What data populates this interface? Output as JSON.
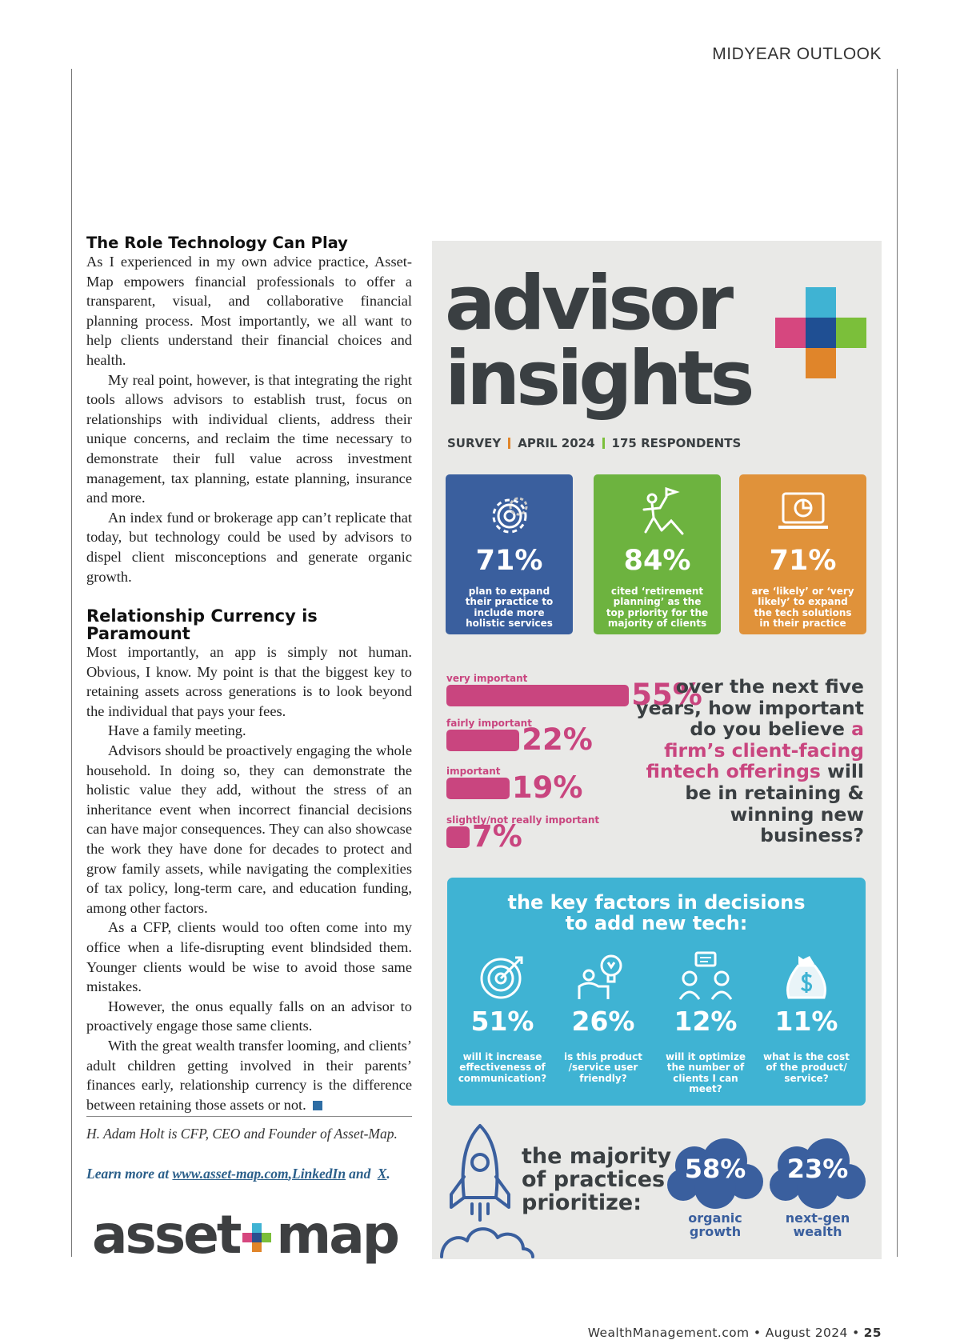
{
  "header": {
    "section": "MIDYEAR OUTLOOK"
  },
  "article": {
    "sections": [
      {
        "heading": "The Role Technology Can Play",
        "paragraphs": [
          "As I experienced in my own advice practice, Asset-Map empowers financial professionals to offer a transparent, visual, and collaborative financial planning process. Most importantly, we all want to help clients understand their financial choices and health.",
          "My real point, however, is that integrating the right tools allows advisors to establish trust, focus on relationships with individual clients, address their unique concerns, and reclaim the time necessary to demonstrate their full value across investment management, tax planning, estate planning, insurance and more.",
          "An index fund or brokerage app can’t replicate that today, but technology could be used by advisors to dispel client misconceptions and generate organic growth."
        ]
      },
      {
        "heading": "Relationship Currency is Paramount",
        "paragraphs": [
          "Most importantly, an app is simply not human. Obvious, I know. My point is that the biggest key to retaining assets across generations is to look beyond the individual that pays your fees.",
          "Have a family meeting.",
          "Advisors should be proactively engaging the whole household. In doing so, they can demonstrate the holistic value they add, without the stress of an inheritance event when incorrect financial decisions can have major consequences. They can also showcase the work they have done for decades to protect and grow family assets, while navigating the complexities of tax policy, long-term care, and education funding, among other factors.",
          "As a CFP, clients would too often come into my office when a life-disrupting event blindsided them. Younger clients would be wise to avoid those same mistakes.",
          "However, the onus equally falls on an advisor to proactively engage those same clients.",
          "With the great wealth transfer looming, and clients’ adult children getting involved in their parents’ finances early, relationship currency is the difference between retaining those assets or not."
        ]
      }
    ],
    "bio": "H. Adam Holt is CFP, CEO and Founder of Asset-Map.",
    "learn_more": {
      "prefix": "Learn more at",
      "links": [
        "www.asset-map.com",
        "LinkedIn",
        "X"
      ],
      "joiners": [
        ",",
        "and",
        "."
      ]
    }
  },
  "logo": {
    "left": "asset",
    "right": "map"
  },
  "infographic": {
    "title": [
      "advisor",
      "insights"
    ],
    "survey": [
      "SURVEY",
      "APRIL 2024",
      "175 RESPONDENTS"
    ],
    "cards": [
      {
        "value_label": "71%",
        "text": "plan to expand their practice to include more holistic services",
        "color": "#3a5f9e"
      },
      {
        "value_label": "84%",
        "text": "cited ‘retirement planning’ as the top priority for the majority of clients",
        "color": "#6db33f"
      },
      {
        "value_label": "71%",
        "text": "are ‘likely’ or ‘very likely’ to expand the tech solutions in their practice",
        "color": "#e0923a"
      }
    ],
    "importance": {
      "color": "#c9457f",
      "items": [
        {
          "name": "very important",
          "value": 55,
          "value_label": "55%"
        },
        {
          "name": "fairly important",
          "value": 22,
          "value_label": "22%"
        },
        {
          "name": "important",
          "value": 19,
          "value_label": "19%"
        },
        {
          "name": "slightly/not really important",
          "value": 7,
          "value_label": "7%"
        }
      ],
      "question": [
        {
          "text": "over the next five years, how important do you believe",
          "highlight": false
        },
        {
          "text": "a firm’s client-facing fintech offerings",
          "highlight": true
        },
        {
          "text": "will be in retaining & winning new business?",
          "highlight": false
        }
      ]
    },
    "factors": {
      "title": "the key factors in decisions to add new tech:",
      "items": [
        {
          "value_label": "51%",
          "text": "will it increase effectiveness of communication?"
        },
        {
          "value_label": "26%",
          "text": "is this product /service user friendly?"
        },
        {
          "value_label": "12%",
          "text": "will it optimize the number of clients I can meet?"
        },
        {
          "value_label": "11%",
          "text": "what is the cost of the product/ service?"
        }
      ]
    },
    "majority": {
      "title": "the majority of practices prioritize:",
      "items": [
        {
          "value_label": "58%",
          "label": "organic growth"
        },
        {
          "value_label": "23%",
          "label": "next-gen wealth"
        }
      ]
    }
  },
  "footer": {
    "text": "WealthManagement.com • August 2024 •",
    "page": "25"
  }
}
